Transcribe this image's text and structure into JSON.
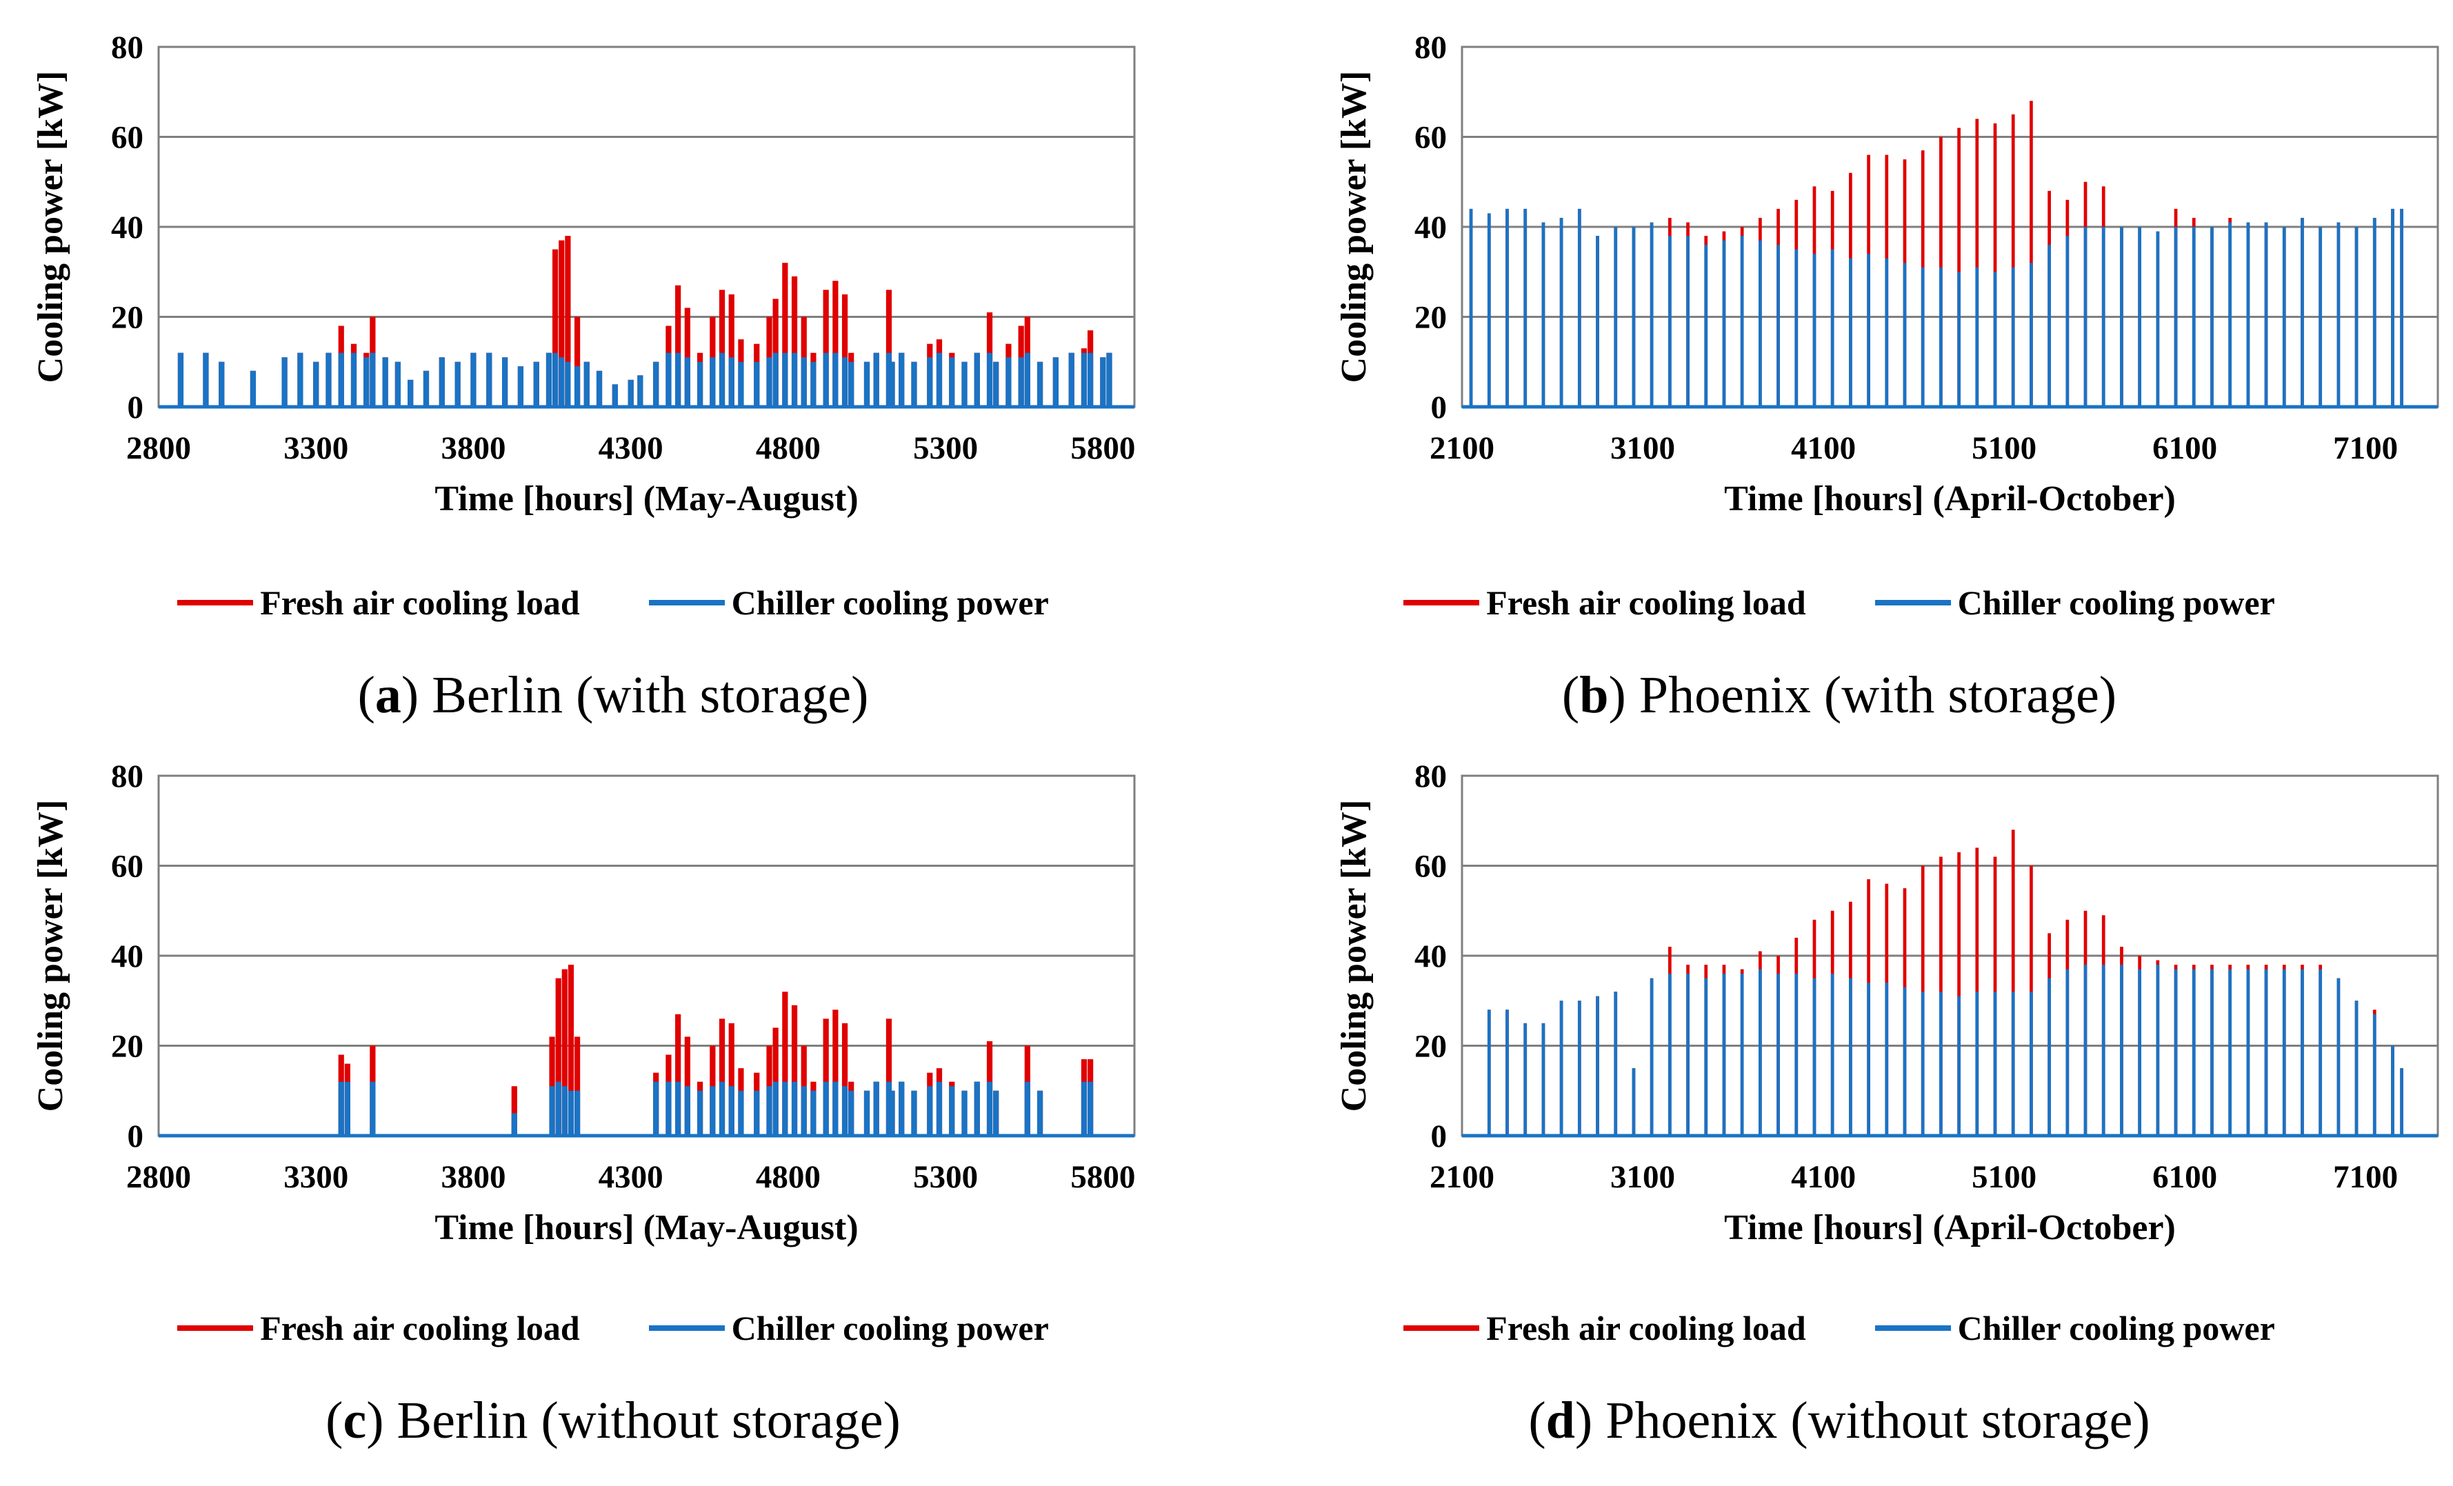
{
  "legend": {
    "fresh_air": "Fresh air cooling load",
    "chiller": "Chiller cooling power"
  },
  "colors": {
    "fresh_air": "#e00000",
    "chiller": "#1a73c4",
    "grid": "#7f7f7f"
  },
  "chart_data": [
    {
      "type": "area",
      "caption_letter": "a",
      "caption_text": " Berlin (with storage)",
      "xlabel": "Time [hours] (May-August)",
      "ylabel": "Cooling power [kW]",
      "xlim": [
        2800,
        5900
      ],
      "ylim": [
        0,
        80
      ],
      "xticks": [
        2800,
        3300,
        3800,
        4300,
        4800,
        5300,
        5800
      ],
      "yticks": [
        0,
        20,
        40,
        60,
        80
      ],
      "series": [
        {
          "name": "Fresh air cooling load",
          "x": [
            2870,
            2950,
            3000,
            3100,
            3200,
            3250,
            3300,
            3340,
            3380,
            3420,
            3460,
            3480,
            3520,
            3560,
            3600,
            3650,
            3700,
            3750,
            3800,
            3850,
            3900,
            3950,
            4000,
            4040,
            4060,
            4080,
            4100,
            4130,
            4160,
            4200,
            4250,
            4300,
            4330,
            4380,
            4420,
            4450,
            4480,
            4520,
            4560,
            4590,
            4620,
            4650,
            4700,
            4740,
            4760,
            4790,
            4820,
            4850,
            4880,
            4920,
            4950,
            4980,
            5000,
            5050,
            5080,
            5120,
            5130,
            5160,
            5200,
            5250,
            5280,
            5320,
            5360,
            5400,
            5440,
            5460,
            5500,
            5540,
            5560,
            5600,
            5650,
            5700,
            5740,
            5760,
            5800,
            5820
          ],
          "values": [
            12,
            12,
            10,
            8,
            11,
            12,
            10,
            12,
            18,
            14,
            12,
            20,
            11,
            10,
            6,
            8,
            11,
            10,
            12,
            12,
            11,
            9,
            10,
            12,
            35,
            37,
            38,
            20,
            10,
            8,
            5,
            6,
            7,
            10,
            18,
            27,
            22,
            12,
            20,
            26,
            25,
            15,
            14,
            20,
            24,
            32,
            29,
            20,
            12,
            26,
            28,
            25,
            12,
            10,
            12,
            26,
            10,
            12,
            10,
            14,
            15,
            12,
            10,
            12,
            21,
            10,
            14,
            18,
            20,
            10,
            11,
            12,
            13,
            17,
            11,
            12
          ]
        },
        {
          "name": "Chiller cooling power",
          "x": [
            2870,
            2950,
            3000,
            3100,
            3200,
            3250,
            3300,
            3340,
            3380,
            3420,
            3460,
            3480,
            3520,
            3560,
            3600,
            3650,
            3700,
            3750,
            3800,
            3850,
            3900,
            3950,
            4000,
            4040,
            4060,
            4080,
            4100,
            4130,
            4160,
            4200,
            4250,
            4300,
            4330,
            4380,
            4420,
            4450,
            4480,
            4520,
            4560,
            4590,
            4620,
            4650,
            4700,
            4740,
            4760,
            4790,
            4820,
            4850,
            4880,
            4920,
            4950,
            4980,
            5000,
            5050,
            5080,
            5120,
            5130,
            5160,
            5200,
            5250,
            5280,
            5320,
            5360,
            5400,
            5440,
            5460,
            5500,
            5540,
            5560,
            5600,
            5650,
            5700,
            5740,
            5760,
            5800,
            5820
          ],
          "values": [
            12,
            12,
            10,
            8,
            11,
            12,
            10,
            12,
            12,
            12,
            11,
            12,
            11,
            10,
            6,
            8,
            11,
            10,
            12,
            12,
            11,
            9,
            10,
            12,
            12,
            11,
            10,
            9,
            10,
            8,
            5,
            6,
            7,
            10,
            12,
            12,
            11,
            10,
            11,
            12,
            11,
            10,
            10,
            11,
            12,
            12,
            12,
            11,
            10,
            12,
            12,
            11,
            10,
            10,
            12,
            12,
            10,
            12,
            10,
            11,
            12,
            11,
            10,
            12,
            12,
            10,
            11,
            11,
            12,
            10,
            11,
            12,
            12,
            12,
            11,
            12
          ]
        }
      ]
    },
    {
      "type": "area",
      "caption_letter": "b",
      "caption_text": " Phoenix (with storage)",
      "xlabel": "Time [hours] (April-October)",
      "ylabel": "Cooling power [kW]",
      "xlim": [
        2100,
        7500
      ],
      "ylim": [
        0,
        80
      ],
      "xticks": [
        2100,
        3100,
        4100,
        5100,
        6100,
        7100
      ],
      "yticks": [
        0,
        20,
        40,
        60,
        80
      ],
      "series": [
        {
          "name": "Fresh air cooling load",
          "x": [
            2150,
            2250,
            2350,
            2450,
            2550,
            2650,
            2750,
            2850,
            2950,
            3050,
            3150,
            3250,
            3350,
            3450,
            3550,
            3650,
            3750,
            3850,
            3950,
            4050,
            4150,
            4250,
            4350,
            4450,
            4550,
            4650,
            4750,
            4850,
            4950,
            5050,
            5150,
            5250,
            5350,
            5450,
            5550,
            5650,
            5750,
            5850,
            5950,
            6050,
            6150,
            6250,
            6350,
            6450,
            6550,
            6650,
            6750,
            6850,
            6950,
            7050,
            7150,
            7250,
            7300
          ],
          "values": [
            44,
            43,
            44,
            44,
            41,
            42,
            44,
            38,
            40,
            40,
            41,
            42,
            41,
            38,
            39,
            40,
            42,
            44,
            46,
            49,
            48,
            52,
            56,
            56,
            55,
            57,
            60,
            62,
            64,
            63,
            65,
            68,
            48,
            46,
            50,
            49,
            40,
            40,
            39,
            44,
            42,
            40,
            42,
            41,
            41,
            40,
            42,
            40,
            41,
            40,
            42,
            44,
            44
          ]
        },
        {
          "name": "Chiller cooling power",
          "x": [
            2150,
            2250,
            2350,
            2450,
            2550,
            2650,
            2750,
            2850,
            2950,
            3050,
            3150,
            3250,
            3350,
            3450,
            3550,
            3650,
            3750,
            3850,
            3950,
            4050,
            4150,
            4250,
            4350,
            4450,
            4550,
            4650,
            4750,
            4850,
            4950,
            5050,
            5150,
            5250,
            5350,
            5450,
            5550,
            5650,
            5750,
            5850,
            5950,
            6050,
            6150,
            6250,
            6350,
            6450,
            6550,
            6650,
            6750,
            6850,
            6950,
            7050,
            7150,
            7250,
            7300
          ],
          "values": [
            44,
            43,
            44,
            44,
            41,
            42,
            44,
            38,
            40,
            40,
            41,
            38,
            38,
            36,
            37,
            38,
            37,
            36,
            35,
            34,
            35,
            33,
            34,
            33,
            32,
            31,
            31,
            30,
            31,
            30,
            31,
            32,
            36,
            38,
            40,
            40,
            40,
            40,
            39,
            40,
            40,
            40,
            41,
            41,
            41,
            40,
            42,
            40,
            41,
            40,
            42,
            44,
            44
          ]
        }
      ]
    },
    {
      "type": "area",
      "caption_letter": "c",
      "caption_text": " Berlin (without storage)",
      "xlabel": "Time [hours] (May-August)",
      "ylabel": "Cooling power [kW]",
      "xlim": [
        2800,
        5900
      ],
      "ylim": [
        0,
        80
      ],
      "xticks": [
        2800,
        3300,
        3800,
        4300,
        4800,
        5300,
        5800
      ],
      "yticks": [
        0,
        20,
        40,
        60,
        80
      ],
      "series": [
        {
          "name": "Fresh air cooling load",
          "x": [
            3380,
            3400,
            3480,
            3930,
            4050,
            4070,
            4090,
            4110,
            4130,
            4380,
            4420,
            4450,
            4480,
            4520,
            4560,
            4590,
            4620,
            4650,
            4700,
            4740,
            4760,
            4790,
            4820,
            4850,
            4880,
            4920,
            4950,
            4980,
            5000,
            5050,
            5080,
            5120,
            5130,
            5160,
            5200,
            5250,
            5280,
            5320,
            5360,
            5400,
            5440,
            5460,
            5560,
            5600,
            5740,
            5760
          ],
          "values": [
            18,
            16,
            20,
            11,
            22,
            35,
            37,
            38,
            22,
            14,
            18,
            27,
            22,
            12,
            20,
            26,
            25,
            15,
            14,
            20,
            24,
            32,
            29,
            20,
            12,
            26,
            28,
            25,
            12,
            10,
            12,
            26,
            10,
            12,
            10,
            14,
            15,
            12,
            10,
            12,
            21,
            10,
            20,
            10,
            17,
            17
          ]
        },
        {
          "name": "Chiller cooling power",
          "x": [
            3380,
            3400,
            3480,
            3930,
            4050,
            4070,
            4090,
            4110,
            4130,
            4380,
            4420,
            4450,
            4480,
            4520,
            4560,
            4590,
            4620,
            4650,
            4700,
            4740,
            4760,
            4790,
            4820,
            4850,
            4880,
            4920,
            4950,
            4980,
            5000,
            5050,
            5080,
            5120,
            5130,
            5160,
            5200,
            5250,
            5280,
            5320,
            5360,
            5400,
            5440,
            5460,
            5560,
            5600,
            5740,
            5760
          ],
          "values": [
            12,
            12,
            12,
            5,
            11,
            12,
            11,
            10,
            10,
            12,
            12,
            12,
            11,
            10,
            11,
            12,
            11,
            10,
            10,
            11,
            12,
            12,
            12,
            11,
            10,
            12,
            12,
            11,
            10,
            10,
            12,
            12,
            10,
            12,
            10,
            11,
            12,
            11,
            10,
            12,
            12,
            10,
            12,
            10,
            12,
            12
          ]
        }
      ]
    },
    {
      "type": "area",
      "caption_letter": "d",
      "caption_text": " Phoenix (without storage)",
      "xlabel": "Time [hours] (April-October)",
      "ylabel": "Cooling power [kW]",
      "xlim": [
        2100,
        7500
      ],
      "ylim": [
        0,
        80
      ],
      "xticks": [
        2100,
        3100,
        4100,
        5100,
        6100,
        7100
      ],
      "yticks": [
        0,
        20,
        40,
        60,
        80
      ],
      "series": [
        {
          "name": "Fresh air cooling load",
          "x": [
            2250,
            2350,
            2450,
            2550,
            2650,
            2750,
            2850,
            2950,
            3050,
            3150,
            3250,
            3350,
            3450,
            3550,
            3650,
            3750,
            3850,
            3950,
            4050,
            4150,
            4250,
            4350,
            4450,
            4550,
            4650,
            4750,
            4850,
            4950,
            5050,
            5150,
            5250,
            5350,
            5450,
            5550,
            5650,
            5750,
            5850,
            5950,
            6050,
            6150,
            6250,
            6350,
            6450,
            6550,
            6650,
            6750,
            6850,
            6950,
            7050,
            7150,
            7250,
            7300
          ],
          "values": [
            28,
            28,
            25,
            25,
            30,
            30,
            31,
            32,
            15,
            35,
            42,
            38,
            38,
            38,
            37,
            41,
            40,
            44,
            48,
            50,
            52,
            57,
            56,
            55,
            60,
            62,
            63,
            64,
            62,
            68,
            60,
            45,
            48,
            50,
            49,
            42,
            40,
            39,
            38,
            38,
            38,
            38,
            38,
            38,
            38,
            38,
            38,
            35,
            30,
            28,
            20,
            15
          ]
        },
        {
          "name": "Chiller cooling power",
          "x": [
            2250,
            2350,
            2450,
            2550,
            2650,
            2750,
            2850,
            2950,
            3050,
            3150,
            3250,
            3350,
            3450,
            3550,
            3650,
            3750,
            3850,
            3950,
            4050,
            4150,
            4250,
            4350,
            4450,
            4550,
            4650,
            4750,
            4850,
            4950,
            5050,
            5150,
            5250,
            5350,
            5450,
            5550,
            5650,
            5750,
            5850,
            5950,
            6050,
            6150,
            6250,
            6350,
            6450,
            6550,
            6650,
            6750,
            6850,
            6950,
            7050,
            7150,
            7250,
            7300
          ],
          "values": [
            28,
            28,
            25,
            25,
            30,
            30,
            31,
            32,
            15,
            35,
            36,
            36,
            35,
            36,
            36,
            37,
            36,
            36,
            35,
            36,
            35,
            34,
            34,
            33,
            32,
            32,
            31,
            32,
            32,
            32,
            32,
            35,
            37,
            38,
            38,
            38,
            37,
            38,
            37,
            37,
            37,
            37,
            37,
            37,
            37,
            37,
            37,
            35,
            30,
            27,
            20,
            15
          ]
        }
      ]
    }
  ]
}
